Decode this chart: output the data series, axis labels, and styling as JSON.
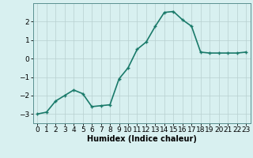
{
  "x": [
    0,
    1,
    2,
    3,
    4,
    5,
    6,
    7,
    8,
    9,
    10,
    11,
    12,
    13,
    14,
    15,
    16,
    17,
    18,
    19,
    20,
    21,
    22,
    23
  ],
  "y": [
    -3.0,
    -2.9,
    -2.3,
    -2.0,
    -1.7,
    -1.9,
    -2.6,
    -2.55,
    -2.5,
    -1.1,
    -0.5,
    0.5,
    0.9,
    1.75,
    2.5,
    2.55,
    2.1,
    1.75,
    0.35,
    0.3,
    0.3,
    0.3,
    0.3,
    0.35
  ],
  "line_color": "#1a7a6a",
  "marker": "+",
  "marker_size": 3,
  "bg_color": "#d8f0f0",
  "grid_color": "#b8d0d0",
  "xlabel": "Humidex (Indice chaleur)",
  "xlim": [
    -0.5,
    23.5
  ],
  "ylim": [
    -3.5,
    3.0
  ],
  "yticks": [
    -3,
    -2,
    -1,
    0,
    1,
    2
  ],
  "xticks": [
    0,
    1,
    2,
    3,
    4,
    5,
    6,
    7,
    8,
    9,
    10,
    11,
    12,
    13,
    14,
    15,
    16,
    17,
    18,
    19,
    20,
    21,
    22,
    23
  ],
  "xlabel_fontsize": 7,
  "tick_fontsize": 6.5,
  "line_width": 1.2
}
